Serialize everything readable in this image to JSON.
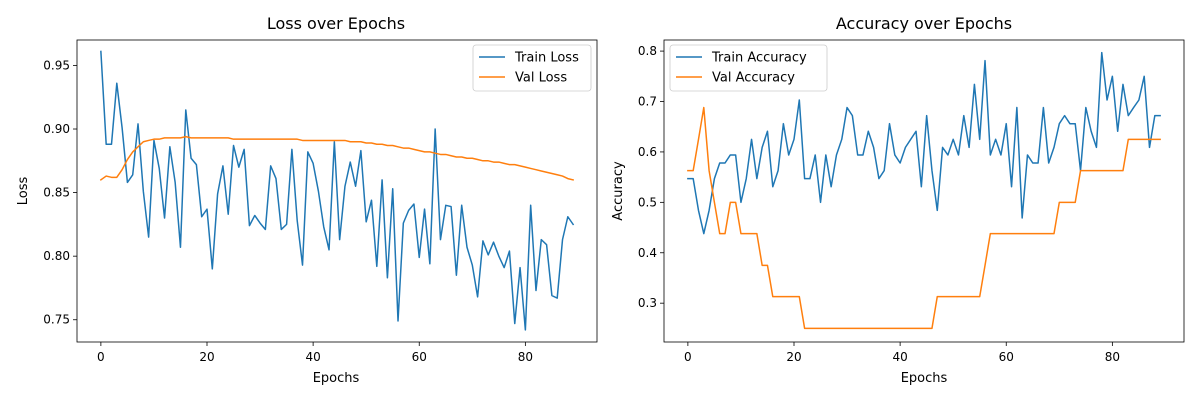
{
  "chart_data": [
    {
      "type": "line",
      "title": "Loss over Epochs",
      "xlabel": "Epochs",
      "ylabel": "Loss",
      "xlim": [
        -4.5,
        93.5
      ],
      "ylim": [
        0.7325,
        0.97
      ],
      "xticks": [
        0,
        20,
        40,
        60,
        80
      ],
      "xtick_labels": [
        "0",
        "20",
        "40",
        "60",
        "80"
      ],
      "yticks": [
        0.75,
        0.8,
        0.85,
        0.9,
        0.95
      ],
      "ytick_labels": [
        "0.75",
        "0.80",
        "0.85",
        "0.90",
        "0.95"
      ],
      "grid": false,
      "legend_position": "top-right",
      "x": [
        0,
        1,
        2,
        3,
        4,
        5,
        6,
        7,
        8,
        9,
        10,
        11,
        12,
        13,
        14,
        15,
        16,
        17,
        18,
        19,
        20,
        21,
        22,
        23,
        24,
        25,
        26,
        27,
        28,
        29,
        30,
        31,
        32,
        33,
        34,
        35,
        36,
        37,
        38,
        39,
        40,
        41,
        42,
        43,
        44,
        45,
        46,
        47,
        48,
        49,
        50,
        51,
        52,
        53,
        54,
        55,
        56,
        57,
        58,
        59,
        60,
        61,
        62,
        63,
        64,
        65,
        66,
        67,
        68,
        69,
        70,
        71,
        72,
        73,
        74,
        75,
        76,
        77,
        78,
        79,
        80,
        81,
        82,
        83,
        84,
        85,
        86,
        87,
        88,
        89
      ],
      "series": [
        {
          "name": "Train Loss",
          "color": "#1f77b4",
          "values": [
            0.961,
            0.888,
            0.888,
            0.936,
            0.901,
            0.858,
            0.864,
            0.904,
            0.851,
            0.815,
            0.891,
            0.869,
            0.83,
            0.886,
            0.858,
            0.807,
            0.915,
            0.877,
            0.872,
            0.831,
            0.837,
            0.79,
            0.849,
            0.871,
            0.833,
            0.887,
            0.87,
            0.884,
            0.824,
            0.832,
            0.826,
            0.821,
            0.871,
            0.861,
            0.821,
            0.825,
            0.884,
            0.828,
            0.793,
            0.882,
            0.873,
            0.851,
            0.823,
            0.805,
            0.89,
            0.813,
            0.855,
            0.874,
            0.855,
            0.883,
            0.827,
            0.844,
            0.792,
            0.86,
            0.783,
            0.853,
            0.749,
            0.826,
            0.836,
            0.841,
            0.799,
            0.837,
            0.794,
            0.9,
            0.813,
            0.84,
            0.839,
            0.785,
            0.84,
            0.807,
            0.793,
            0.768,
            0.812,
            0.801,
            0.811,
            0.8,
            0.791,
            0.804,
            0.747,
            0.791,
            0.742,
            0.84,
            0.773,
            0.813,
            0.809,
            0.769,
            0.767,
            0.813,
            0.831,
            0.825
          ]
        },
        {
          "name": "Val Loss",
          "color": "#ff7f0e",
          "values": [
            0.86,
            0.863,
            0.862,
            0.862,
            0.868,
            0.876,
            0.882,
            0.886,
            0.89,
            0.891,
            0.892,
            0.892,
            0.893,
            0.893,
            0.893,
            0.893,
            0.894,
            0.893,
            0.893,
            0.893,
            0.893,
            0.893,
            0.893,
            0.893,
            0.893,
            0.892,
            0.892,
            0.892,
            0.892,
            0.892,
            0.892,
            0.892,
            0.892,
            0.892,
            0.892,
            0.892,
            0.892,
            0.892,
            0.891,
            0.891,
            0.891,
            0.891,
            0.891,
            0.891,
            0.891,
            0.891,
            0.891,
            0.89,
            0.89,
            0.89,
            0.889,
            0.889,
            0.888,
            0.888,
            0.887,
            0.887,
            0.886,
            0.885,
            0.885,
            0.884,
            0.883,
            0.882,
            0.882,
            0.881,
            0.88,
            0.88,
            0.879,
            0.878,
            0.878,
            0.877,
            0.877,
            0.876,
            0.875,
            0.875,
            0.874,
            0.874,
            0.873,
            0.872,
            0.872,
            0.871,
            0.87,
            0.869,
            0.868,
            0.867,
            0.866,
            0.865,
            0.864,
            0.863,
            0.861,
            0.86
          ]
        }
      ]
    },
    {
      "type": "line",
      "title": "Accuracy over Epochs",
      "xlabel": "Epochs",
      "ylabel": "Accuracy",
      "xlim": [
        -4.5,
        93.5
      ],
      "ylim": [
        0.223,
        0.822
      ],
      "xticks": [
        0,
        20,
        40,
        60,
        80
      ],
      "xtick_labels": [
        "0",
        "20",
        "40",
        "60",
        "80"
      ],
      "yticks": [
        0.3,
        0.4,
        0.5,
        0.6,
        0.7,
        0.8
      ],
      "ytick_labels": [
        "0.3",
        "0.4",
        "0.5",
        "0.6",
        "0.7",
        "0.8"
      ],
      "grid": false,
      "legend_position": "top-left",
      "x": [
        0,
        1,
        2,
        3,
        4,
        5,
        6,
        7,
        8,
        9,
        10,
        11,
        12,
        13,
        14,
        15,
        16,
        17,
        18,
        19,
        20,
        21,
        22,
        23,
        24,
        25,
        26,
        27,
        28,
        29,
        30,
        31,
        32,
        33,
        34,
        35,
        36,
        37,
        38,
        39,
        40,
        41,
        42,
        43,
        44,
        45,
        46,
        47,
        48,
        49,
        50,
        51,
        52,
        53,
        54,
        55,
        56,
        57,
        58,
        59,
        60,
        61,
        62,
        63,
        64,
        65,
        66,
        67,
        68,
        69,
        70,
        71,
        72,
        73,
        74,
        75,
        76,
        77,
        78,
        79,
        80,
        81,
        82,
        83,
        84,
        85,
        86,
        87,
        88,
        89
      ],
      "series": [
        {
          "name": "Train Accuracy",
          "color": "#1f77b4",
          "values": [
            0.547,
            0.547,
            0.484,
            0.438,
            0.484,
            0.547,
            0.578,
            0.578,
            0.594,
            0.594,
            0.5,
            0.547,
            0.625,
            0.547,
            0.609,
            0.641,
            0.531,
            0.563,
            0.656,
            0.594,
            0.625,
            0.703,
            0.547,
            0.547,
            0.594,
            0.5,
            0.594,
            0.531,
            0.594,
            0.625,
            0.688,
            0.672,
            0.594,
            0.594,
            0.641,
            0.609,
            0.547,
            0.563,
            0.656,
            0.594,
            0.578,
            0.609,
            0.625,
            0.641,
            0.531,
            0.672,
            0.563,
            0.484,
            0.609,
            0.594,
            0.625,
            0.594,
            0.672,
            0.609,
            0.734,
            0.625,
            0.781,
            0.594,
            0.625,
            0.594,
            0.656,
            0.531,
            0.688,
            0.469,
            0.594,
            0.578,
            0.578,
            0.688,
            0.578,
            0.609,
            0.656,
            0.672,
            0.656,
            0.656,
            0.563,
            0.688,
            0.641,
            0.609,
            0.797,
            0.703,
            0.75,
            0.641,
            0.734,
            0.672,
            0.688,
            0.703,
            0.75,
            0.609,
            0.672,
            0.672
          ]
        },
        {
          "name": "Val Accuracy",
          "color": "#ff7f0e",
          "values": [
            0.563,
            0.563,
            0.625,
            0.688,
            0.563,
            0.5,
            0.438,
            0.438,
            0.5,
            0.5,
            0.438,
            0.438,
            0.438,
            0.438,
            0.375,
            0.375,
            0.313,
            0.313,
            0.313,
            0.313,
            0.313,
            0.313,
            0.25,
            0.25,
            0.25,
            0.25,
            0.25,
            0.25,
            0.25,
            0.25,
            0.25,
            0.25,
            0.25,
            0.25,
            0.25,
            0.25,
            0.25,
            0.25,
            0.25,
            0.25,
            0.25,
            0.25,
            0.25,
            0.25,
            0.25,
            0.25,
            0.25,
            0.313,
            0.313,
            0.313,
            0.313,
            0.313,
            0.313,
            0.313,
            0.313,
            0.313,
            0.375,
            0.438,
            0.438,
            0.438,
            0.438,
            0.438,
            0.438,
            0.438,
            0.438,
            0.438,
            0.438,
            0.438,
            0.438,
            0.438,
            0.5,
            0.5,
            0.5,
            0.5,
            0.563,
            0.563,
            0.563,
            0.563,
            0.563,
            0.563,
            0.563,
            0.563,
            0.563,
            0.625,
            0.625,
            0.625,
            0.625,
            0.625,
            0.625,
            0.625
          ]
        }
      ]
    }
  ]
}
